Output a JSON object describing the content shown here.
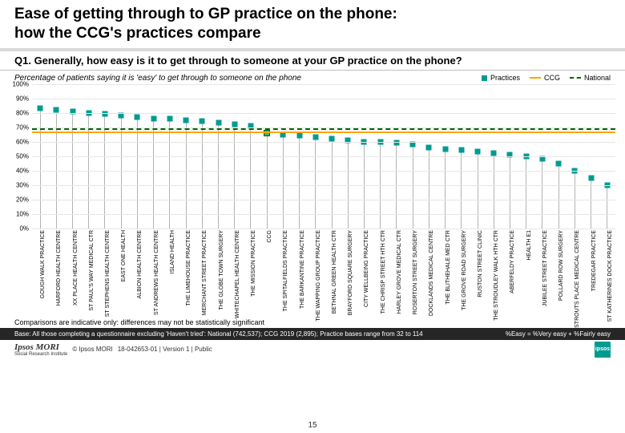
{
  "title_line1": "Ease of getting through to GP practice on the phone:",
  "title_line2": "how the CCG's practices compare",
  "question": "Q1. Generally, how easy is it to get through to someone at your GP practice on the phone?",
  "subhead": "Percentage of patients saying it is 'easy' to get through to someone on the phone",
  "legend": {
    "practices": "Practices",
    "ccg": "CCG",
    "national": "National"
  },
  "chart": {
    "type": "dot-lollipop",
    "ylim": [
      0,
      100
    ],
    "ytick_step": 10,
    "y_suffix": "%",
    "national_line": 68,
    "ccg_line": 66,
    "practice_color": "#009b90",
    "ccg_line_color": "#ffa500",
    "national_line_color": "#006600",
    "stem_color": "#b3b3b3",
    "grid_color": "#e6e6e6",
    "background": "#ffffff",
    "practices": [
      {
        "name": "GOUGH WALK PRACTICE",
        "v": 83
      },
      {
        "name": "HARFORD HEALTH CENTRE",
        "v": 82
      },
      {
        "name": "XX PLACE HEALTH CENTRE",
        "v": 81
      },
      {
        "name": "ST PAUL'S WAY MEDICAL CTR",
        "v": 80
      },
      {
        "name": "ST STEPHENS HEALTH CENTRE",
        "v": 79
      },
      {
        "name": "EAST ONE HEALTH",
        "v": 78
      },
      {
        "name": "ALBION HEALTH CENTRE",
        "v": 77
      },
      {
        "name": "ST ANDREWS HEALTH CENTRE",
        "v": 76
      },
      {
        "name": "ISLAND HEALTH",
        "v": 76
      },
      {
        "name": "THE LIMEHOUSE PRACTICE",
        "v": 75
      },
      {
        "name": "MERCHANT STREET PRACTICE",
        "v": 74
      },
      {
        "name": "THE GLOBE TOWN SURGERY",
        "v": 73
      },
      {
        "name": "WHITECHAPEL HEALTH CENTRE",
        "v": 72
      },
      {
        "name": "THE MISSION PRACTICE",
        "v": 71
      },
      {
        "name": "CCG",
        "v": 66,
        "ccg": true
      },
      {
        "name": "THE SPITALFIELDS PRACTICE",
        "v": 65
      },
      {
        "name": "THE BARKANTINE PRACTICE",
        "v": 64
      },
      {
        "name": "THE WAPPING GROUP PRACTICE",
        "v": 63
      },
      {
        "name": "BETHNAL GREEN HEALTH CTR",
        "v": 62
      },
      {
        "name": "BRAYFORD SQUARE SURGERY",
        "v": 61
      },
      {
        "name": "CITY WELLBEING PRACTICE",
        "v": 60
      },
      {
        "name": "THE CHRISP STREET HTH CTR",
        "v": 60
      },
      {
        "name": "HARLEY GROVE MEDICAL CTR",
        "v": 59
      },
      {
        "name": "ROSERTON STREET SURGERY",
        "v": 58
      },
      {
        "name": "DOCKLANDS MEDICAL CENTRE",
        "v": 56
      },
      {
        "name": "THE BLITHEHALE MED CTR",
        "v": 55
      },
      {
        "name": "THE GROVE ROAD SURGERY",
        "v": 54
      },
      {
        "name": "RUSTON STREET CLINIC",
        "v": 53
      },
      {
        "name": "THE STROUDLEY WALK HTH CTR",
        "v": 52
      },
      {
        "name": "ABERFELDY PRACTICE",
        "v": 51
      },
      {
        "name": "HEALTH E1",
        "v": 50
      },
      {
        "name": "JUBILEE STREET PRACTICE",
        "v": 48
      },
      {
        "name": "POLLARD ROW SURGERY",
        "v": 45
      },
      {
        "name": "STROUTS PLACE MEDICAL CENTRE",
        "v": 40
      },
      {
        "name": "TREDEGAR PRACTICE",
        "v": 35
      },
      {
        "name": "ST KATHERINES DOCK PRACTICE",
        "v": 30
      }
    ]
  },
  "note": "Comparisons are indicative only: differences may not be statistically significant",
  "base_text": "Base: All those completing a questionnaire excluding 'Haven't tried': National (742,537); CCG 2019 (2,895); Practice bases range from 32 to 114",
  "easy_def": "%Easy = %Very easy + %Fairly easy",
  "copyright": "© Ipsos MORI",
  "doc_ref": "18-042653-01 | Version 1 | Public",
  "page": "15",
  "logo_text": "Ipsos MORI",
  "logo_sub": "Social Research Institute",
  "badge": "ipsos"
}
